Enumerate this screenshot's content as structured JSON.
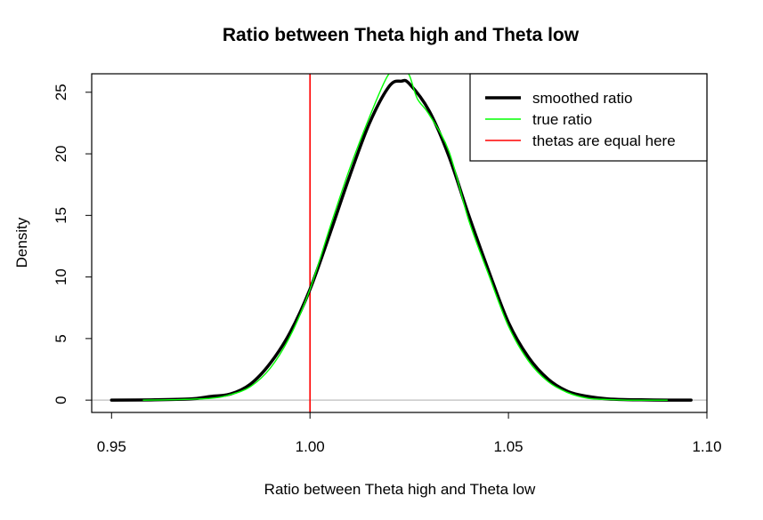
{
  "chart_data": {
    "type": "line",
    "title": "Ratio between Theta high and Theta low",
    "xlabel": "Ratio between Theta high and Theta low",
    "ylabel": "Density",
    "xlim": [
      0.945,
      1.1
    ],
    "ylim": [
      -1,
      26.5
    ],
    "x_ticks": [
      0.95,
      1.0,
      1.05,
      1.1
    ],
    "x_tick_labels": [
      "0.95",
      "1.00",
      "1.05",
      "1.10"
    ],
    "y_ticks": [
      0,
      5,
      10,
      15,
      20,
      25
    ],
    "y_tick_labels": [
      "0",
      "5",
      "10",
      "15",
      "20",
      "25"
    ],
    "grid": false,
    "legend_position": "top-right",
    "legend": [
      {
        "label": "smoothed ratio",
        "color": "#000000"
      },
      {
        "label": "true ratio",
        "color": "#00ff00"
      },
      {
        "label": "thetas are equal here",
        "color": "#ff0000"
      }
    ],
    "reference_vline_x": 1.0,
    "zero_line_y": 0,
    "series": [
      {
        "name": "smoothed ratio",
        "color": "#000000",
        "x": [
          0.95,
          0.96,
          0.97,
          0.975,
          0.98,
          0.985,
          0.99,
          0.995,
          1.0,
          1.005,
          1.01,
          1.015,
          1.02,
          1.023,
          1.025,
          1.03,
          1.035,
          1.04,
          1.045,
          1.05,
          1.055,
          1.06,
          1.065,
          1.07,
          1.075,
          1.08,
          1.085,
          1.09,
          1.096
        ],
        "values": [
          0.0,
          0.02,
          0.1,
          0.3,
          0.5,
          1.3,
          3.0,
          5.5,
          9.0,
          13.5,
          18.2,
          22.5,
          25.5,
          25.9,
          25.7,
          23.5,
          19.8,
          15.0,
          10.5,
          6.3,
          3.5,
          1.7,
          0.7,
          0.3,
          0.1,
          0.04,
          0.02,
          0.0,
          0.0
        ]
      },
      {
        "name": "true ratio",
        "color": "#00ff00",
        "x": [
          0.958,
          0.965,
          0.975,
          0.98,
          0.985,
          0.99,
          0.995,
          1.0,
          1.005,
          1.01,
          1.015,
          1.019,
          1.021,
          1.023,
          1.025,
          1.027,
          1.03,
          1.035,
          1.04,
          1.045,
          1.05,
          1.055,
          1.06,
          1.065,
          1.07,
          1.075,
          1.08,
          1.085,
          1.09
        ],
        "values": [
          0.0,
          0.03,
          0.15,
          0.45,
          1.1,
          2.6,
          5.2,
          9.0,
          14.0,
          18.8,
          23.0,
          26.0,
          26.8,
          27.0,
          26.4,
          24.5,
          23.2,
          20.2,
          14.6,
          10.2,
          6.0,
          3.2,
          1.5,
          0.6,
          0.15,
          0.05,
          0.0,
          0.0,
          0.0
        ]
      }
    ]
  }
}
